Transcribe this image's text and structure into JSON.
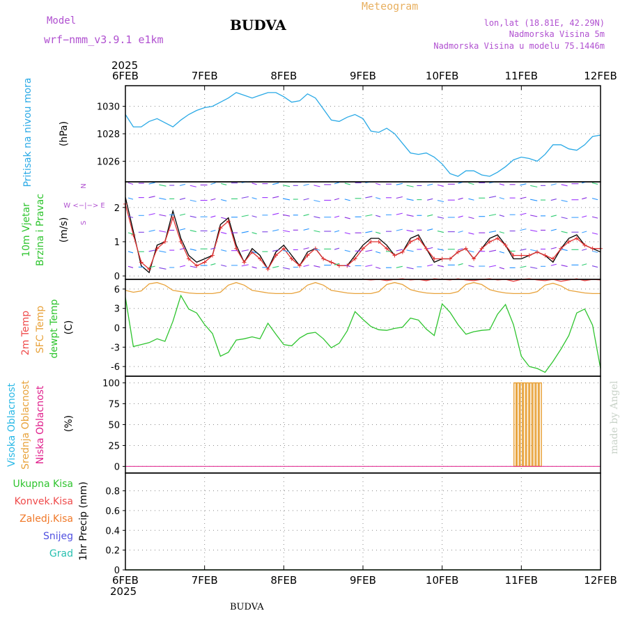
{
  "header": {
    "model_label": "Model",
    "model_name": "wrf−nmm_v3.9.1  e1km",
    "title": "BUDVA",
    "subtitle": "Meteogram",
    "lonlat": "lon,lat (18.81E, 42.29N)",
    "elevation": "Nadmorska Visina 5m",
    "model_elevation": "Nadmorska Visina u modelu 75.1446m",
    "footer_title": "BUDVA",
    "watermark": "made by Angel"
  },
  "colors": {
    "pressure": "#29a9e6",
    "wind_speed": "#000000",
    "gust": "#e03030",
    "temp2m": "#ef4b4b",
    "sfc_temp": "#e8a23a",
    "dewpt": "#2ec42e",
    "mid_cloud": "#e8a23a",
    "low_cloud": "#e0208c",
    "high_cloud": "#29b8e6",
    "axis": "#000000",
    "grid": "#888888"
  },
  "chart_data": [
    {
      "type": "line",
      "panel": "pressure",
      "ylabel": "(hPa)",
      "side_labels": [
        "Pritisak na nivou mora"
      ],
      "ylim": [
        1024.5,
        1031.5
      ],
      "yticks": [
        1026,
        1028,
        1030
      ],
      "grid": true,
      "x": [
        0,
        0.1,
        0.2,
        0.3,
        0.4,
        0.5,
        0.6,
        0.7,
        0.8,
        0.9,
        1.0,
        1.1,
        1.2,
        1.3,
        1.4,
        1.5,
        1.6,
        1.7,
        1.8,
        1.9,
        2.0,
        2.1,
        2.2,
        2.3,
        2.4,
        2.5,
        2.6,
        2.7,
        2.8,
        2.9,
        3.0,
        3.1,
        3.2,
        3.3,
        3.4,
        3.5,
        3.6,
        3.7,
        3.8,
        3.9,
        4.0,
        4.1,
        4.2,
        4.3,
        4.4,
        4.5,
        4.6,
        4.7,
        4.8,
        4.9,
        5.0,
        5.1,
        5.2,
        5.3,
        5.4,
        5.5,
        5.6,
        5.7,
        5.8,
        5.9,
        6.0
      ],
      "series": [
        {
          "values": [
            1029.4,
            1028.5,
            1028.5,
            1028.9,
            1029.1,
            1028.8,
            1028.5,
            1029.0,
            1029.4,
            1029.7,
            1029.9,
            1030.0,
            1030.3,
            1030.6,
            1031.0,
            1030.8,
            1030.6,
            1030.8,
            1031.0,
            1031.0,
            1030.7,
            1030.3,
            1030.4,
            1030.9,
            1030.6,
            1029.8,
            1029.0,
            1028.9,
            1029.2,
            1029.4,
            1029.1,
            1028.2,
            1028.1,
            1028.4,
            1028.0,
            1027.3,
            1026.6,
            1026.5,
            1026.6,
            1026.3,
            1025.8,
            1025.1,
            1024.9,
            1025.3,
            1025.3,
            1025.0,
            1024.9,
            1025.2,
            1025.6,
            1026.1,
            1026.3,
            1026.2,
            1026.0,
            1026.5,
            1027.2,
            1027.2,
            1026.9,
            1026.8,
            1027.2,
            1027.8,
            1027.9
          ]
        }
      ]
    },
    {
      "type": "line",
      "panel": "wind",
      "ylabel": "(m/s)",
      "side_labels": [
        "10m Vjetar",
        "Brzina i Pravac"
      ],
      "direction_legend": "W  <−|−>  E",
      "ylim": [
        -0.1,
        2.75
      ],
      "yticks": [
        0,
        1,
        2
      ],
      "grid": true,
      "x": [
        0,
        0.1,
        0.2,
        0.3,
        0.4,
        0.5,
        0.6,
        0.7,
        0.8,
        0.9,
        1.0,
        1.1,
        1.2,
        1.3,
        1.4,
        1.5,
        1.6,
        1.7,
        1.8,
        1.9,
        2.0,
        2.1,
        2.2,
        2.3,
        2.4,
        2.5,
        2.6,
        2.7,
        2.8,
        2.9,
        3.0,
        3.1,
        3.2,
        3.3,
        3.4,
        3.5,
        3.6,
        3.7,
        3.8,
        3.9,
        4.0,
        4.1,
        4.2,
        4.3,
        4.4,
        4.5,
        4.6,
        4.7,
        4.8,
        4.9,
        5.0,
        5.1,
        5.2,
        5.3,
        5.4,
        5.5,
        5.6,
        5.7,
        5.8,
        5.9,
        6.0
      ],
      "series": [
        {
          "name": "speed",
          "values": [
            2.3,
            1.3,
            0.3,
            0.1,
            0.9,
            1.0,
            1.9,
            1.1,
            0.6,
            0.4,
            0.5,
            0.6,
            1.5,
            1.7,
            0.9,
            0.4,
            0.8,
            0.6,
            0.2,
            0.7,
            0.9,
            0.6,
            0.3,
            0.7,
            0.8,
            0.5,
            0.4,
            0.3,
            0.3,
            0.6,
            0.9,
            1.1,
            1.1,
            0.9,
            0.6,
            0.7,
            1.1,
            1.2,
            0.8,
            0.4,
            0.5,
            0.5,
            0.7,
            0.8,
            0.5,
            0.8,
            1.1,
            1.2,
            0.9,
            0.5,
            0.5,
            0.6,
            0.7,
            0.6,
            0.4,
            0.8,
            1.1,
            1.2,
            0.9,
            0.8,
            0.7
          ]
        },
        {
          "name": "gust",
          "values": [
            2.1,
            1.2,
            0.4,
            0.2,
            0.8,
            1.0,
            1.7,
            1.0,
            0.5,
            0.3,
            0.4,
            0.6,
            1.4,
            1.6,
            0.8,
            0.4,
            0.7,
            0.5,
            0.2,
            0.6,
            0.8,
            0.5,
            0.3,
            0.6,
            0.8,
            0.5,
            0.4,
            0.3,
            0.3,
            0.5,
            0.8,
            1.0,
            1.0,
            0.8,
            0.6,
            0.7,
            1.0,
            1.1,
            0.8,
            0.5,
            0.5,
            0.5,
            0.7,
            0.8,
            0.5,
            0.8,
            1.0,
            1.1,
            0.9,
            0.6,
            0.6,
            0.6,
            0.7,
            0.6,
            0.5,
            0.8,
            1.0,
            1.1,
            0.9,
            0.8,
            0.8
          ]
        }
      ]
    },
    {
      "type": "line",
      "panel": "temperature",
      "ylabel": "(C)",
      "side_labels": [
        "2m Temp",
        "SFC Temp",
        "dewpt Temp"
      ],
      "ylim": [
        -7.5,
        7.5
      ],
      "yticks": [
        -6,
        -3,
        0,
        3,
        6
      ],
      "grid": true,
      "x": [
        0,
        0.1,
        0.2,
        0.3,
        0.4,
        0.5,
        0.6,
        0.7,
        0.8,
        0.9,
        1.0,
        1.1,
        1.2,
        1.3,
        1.4,
        1.5,
        1.6,
        1.7,
        1.8,
        1.9,
        2.0,
        2.1,
        2.2,
        2.3,
        2.4,
        2.5,
        2.6,
        2.7,
        2.8,
        2.9,
        3.0,
        3.1,
        3.2,
        3.3,
        3.4,
        3.5,
        3.6,
        3.7,
        3.8,
        3.9,
        4.0,
        4.1,
        4.2,
        4.3,
        4.4,
        4.5,
        4.6,
        4.7,
        4.8,
        4.9,
        5.0,
        5.1,
        5.2,
        5.3,
        5.4,
        5.5,
        5.6,
        5.7,
        5.8,
        5.9,
        6.0
      ],
      "series": [
        {
          "name": "2m",
          "values": [
            null,
            null,
            null,
            null,
            null,
            null,
            null,
            null,
            null,
            null,
            null,
            null,
            null,
            null,
            null,
            null,
            null,
            null,
            null,
            null,
            null,
            null,
            null,
            null,
            null,
            null,
            null,
            null,
            null,
            null,
            7.5,
            7.4,
            7.5,
            7.3,
            7.5,
            7.6,
            7.4,
            7.5,
            7.3,
            7.6,
            7.5,
            7.4,
            7.6,
            7.4,
            7.3,
            7.5,
            7.6,
            7.4,
            7.5,
            7.2,
            7.5,
            7.6,
            7.4,
            7.3,
            7.5,
            7.2,
            7.4,
            7.6,
            7.3,
            7.5,
            7.4
          ]
        },
        {
          "name": "sfc",
          "values": [
            5.8,
            5.5,
            5.7,
            6.8,
            7.0,
            6.6,
            5.8,
            5.6,
            5.4,
            5.3,
            5.3,
            5.3,
            5.5,
            6.6,
            7.0,
            6.6,
            5.8,
            5.6,
            5.4,
            5.3,
            5.3,
            5.3,
            5.6,
            6.6,
            7.0,
            6.6,
            5.8,
            5.6,
            5.4,
            5.3,
            5.3,
            5.3,
            5.6,
            6.7,
            7.0,
            6.7,
            5.9,
            5.6,
            5.4,
            5.3,
            5.3,
            5.3,
            5.6,
            6.7,
            7.0,
            6.7,
            5.9,
            5.6,
            5.4,
            5.3,
            5.3,
            5.3,
            5.6,
            6.6,
            6.9,
            6.5,
            5.8,
            5.6,
            5.4,
            5.3,
            5.3
          ]
        },
        {
          "name": "dewpt",
          "values": [
            4.7,
            -2.9,
            -2.6,
            -2.3,
            -1.7,
            -2.1,
            1.0,
            5.0,
            2.9,
            2.3,
            0.5,
            -0.9,
            -4.4,
            -3.8,
            -1.9,
            -1.7,
            -1.4,
            -1.7,
            0.7,
            -1.0,
            -2.6,
            -2.8,
            -1.6,
            -0.9,
            -0.7,
            -1.7,
            -3.1,
            -2.4,
            -0.5,
            2.5,
            1.3,
            0.2,
            -0.3,
            -0.4,
            -0.1,
            0.1,
            1.5,
            1.2,
            -0.2,
            -1.2,
            3.7,
            2.4,
            0.5,
            -1.0,
            -0.6,
            -0.4,
            -0.3,
            2.1,
            3.6,
            0.5,
            -4.4,
            -6.0,
            -6.3,
            -6.9,
            -5.2,
            -3.3,
            -1.2,
            2.3,
            2.9,
            0.4,
            -6.3
          ]
        }
      ]
    },
    {
      "type": "bar",
      "panel": "cloud",
      "ylabel": "(%)",
      "side_labels": [
        "Visoka Oblacnost",
        "Srednja Oblacnost",
        "Niska Oblacnost"
      ],
      "ylim": [
        -8,
        108
      ],
      "yticks": [
        0,
        25,
        50,
        75,
        100
      ],
      "grid": true,
      "x": [
        4.92,
        4.96,
        5.0,
        5.04,
        5.08,
        5.12,
        5.16,
        5.2,
        5.24
      ],
      "series": [
        {
          "name": "mid",
          "values": [
            100,
            100,
            100,
            100,
            100,
            100,
            100,
            100,
            100
          ]
        }
      ]
    },
    {
      "type": "line",
      "panel": "precip",
      "ylabel": "1hr Precip (mm)",
      "side_labels": [
        "Ukupna Kisa",
        "Konvek.Kisa",
        "Zaledj.Kisa",
        "Snijeg",
        "Grad"
      ],
      "ylim": [
        0,
        0.98
      ],
      "yticks": [
        0,
        0.2,
        0.4,
        0.6,
        0.8
      ],
      "grid": true,
      "x": [
        0,
        6
      ],
      "series": [
        {
          "name": "total",
          "values": [
            0,
            0
          ]
        }
      ]
    }
  ],
  "time_axis": {
    "year": "2025",
    "ticks": [
      "6FEB",
      "7FEB",
      "8FEB",
      "9FEB",
      "10FEB",
      "11FEB",
      "12FEB"
    ]
  },
  "legend_text": {
    "pressure": "Pritisak na nivou mora",
    "wind1": "10m Vjetar",
    "wind2": "Brzina i Pravac",
    "dir_ns_top": "N",
    "dir_ns_bottom": "S",
    "dir_we": "W  <−|−>  E",
    "temp2m": "2m Temp",
    "sfc": "SFC Temp",
    "dewpt": "dewpt Temp",
    "high": "Visoka Oblacnost",
    "mid": "Srednja Oblacnost",
    "low": "Niska Oblacnost",
    "rain": "Ukupna Kisa",
    "conv": "Konvek.Kisa",
    "frz": "Zaledj.Kisa",
    "snow": "Snijeg",
    "hail": "Grad"
  }
}
